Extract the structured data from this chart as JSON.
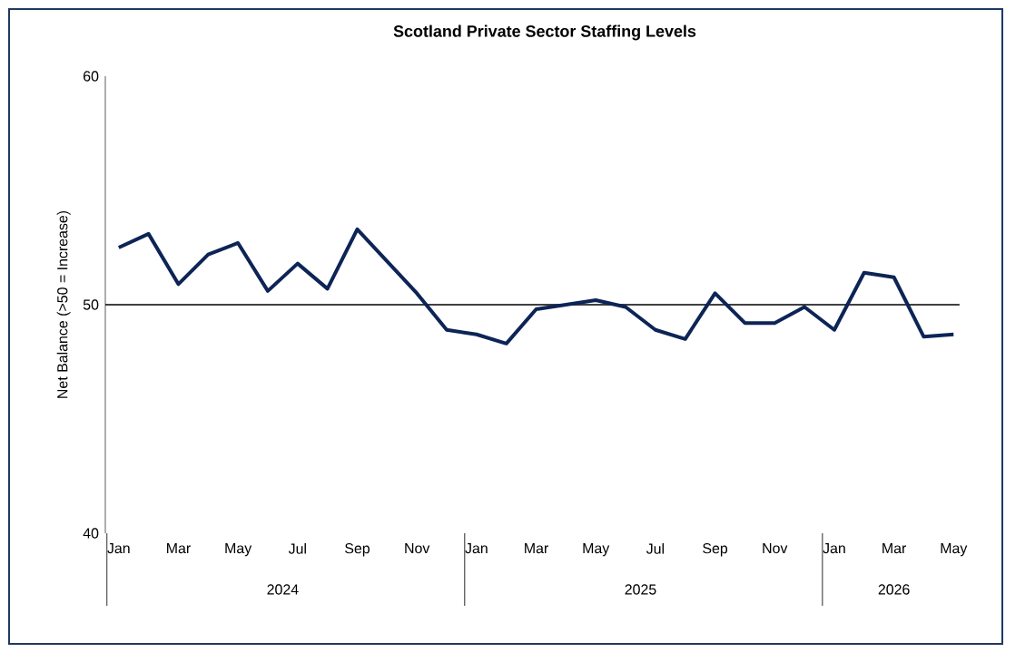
{
  "chart_data": {
    "type": "line",
    "title": "Scotland Private Sector Staffing Levels",
    "ylabel": "Net Balance (>50 = Increase)",
    "categories": [
      "Jan",
      null,
      "Mar",
      null,
      "May",
      null,
      "Jul",
      null,
      "Sep",
      null,
      "Nov",
      null,
      "Jan",
      null,
      "Mar",
      null,
      "May",
      null,
      "Jul",
      null,
      "Sep",
      null,
      "Nov",
      null,
      "Jan",
      null,
      "Mar",
      null,
      "May"
    ],
    "series": [
      {
        "color": "#0d2456",
        "values": [
          52.5,
          53.1,
          50.9,
          52.2,
          52.7,
          50.6,
          51.8,
          50.7,
          53.3,
          51.9,
          50.5,
          48.9,
          48.7,
          48.3,
          49.8,
          50.0,
          50.2,
          49.9,
          48.9,
          48.5,
          50.5,
          49.2,
          49.2,
          49.9,
          48.9,
          51.4,
          51.2,
          48.6,
          48.7
        ]
      }
    ],
    "ylim": [
      40,
      60
    ],
    "yticks": [
      40,
      50,
      60
    ],
    "ref_lines": [
      {
        "axis": "y",
        "value": 50,
        "color": "#000000"
      }
    ],
    "annotations": [
      "2024",
      "2025",
      "2026"
    ]
  }
}
